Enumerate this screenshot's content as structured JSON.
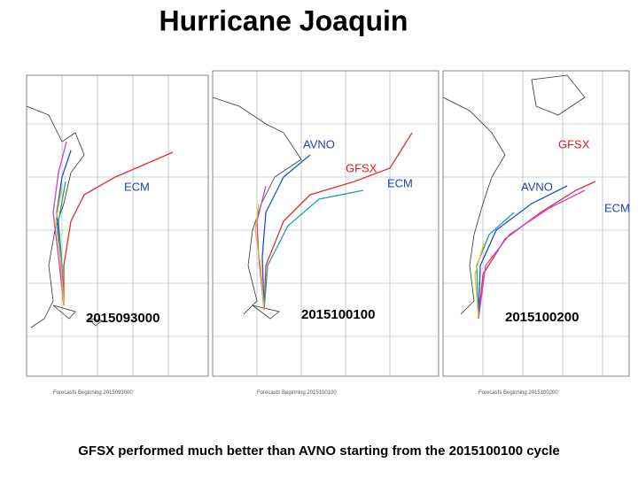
{
  "title": "Hurricane Joaquin",
  "panels": [
    {
      "labels": [
        "ECM"
      ],
      "cycle": "2015093000"
    },
    {
      "labels": [
        "AVNO",
        "GFSX",
        "ECM"
      ],
      "cycle": "2015100100"
    },
    {
      "labels": [
        "GFSX",
        "AVNO",
        "ECM"
      ],
      "cycle": "2015100200"
    }
  ],
  "caption": "GFSX performed much better than AVNO starting from the 2015100100 cycle"
}
